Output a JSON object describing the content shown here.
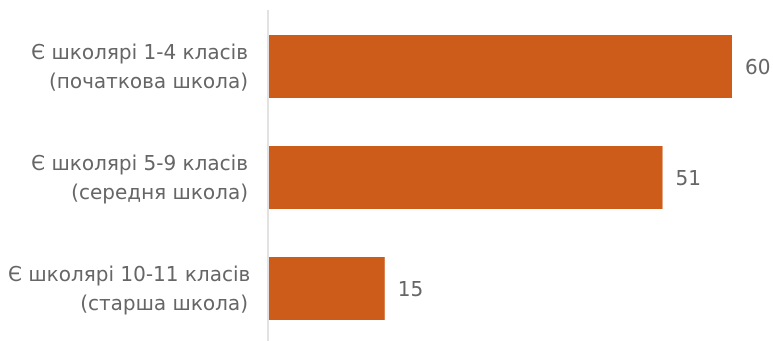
{
  "chart_data": {
    "type": "bar",
    "orientation": "horizontal",
    "categories": [
      [
        "Є школярі 1-4 класів",
        "(початкова школа)"
      ],
      [
        "Є школярі 5-9 класів",
        "(середня школа)"
      ],
      [
        "Є школярі 10-11 класів",
        "(старша школа)"
      ]
    ],
    "values": [
      60,
      51,
      15
    ],
    "title": "",
    "xlabel": "",
    "ylabel": "",
    "xlim": [
      0,
      60
    ],
    "grid": false,
    "legend": "none",
    "data_labels": true,
    "bar_color": "#cd5c1a",
    "axis_color": "#d9d9d9",
    "text_color": "#666666"
  }
}
